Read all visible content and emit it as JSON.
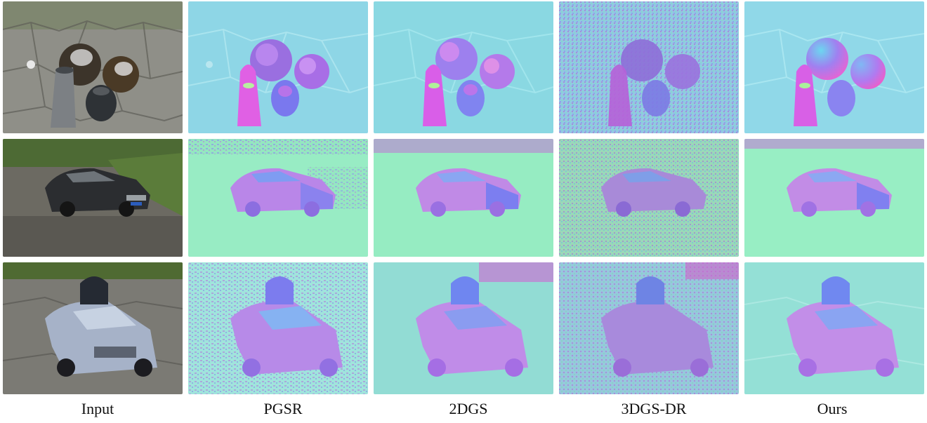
{
  "figure": {
    "columns": [
      {
        "id": "input",
        "label": "Input"
      },
      {
        "id": "pgsr",
        "label": "PGSR"
      },
      {
        "id": "2dgs",
        "label": "2DGS"
      },
      {
        "id": "3dgs-dr",
        "label": "3DGS-DR"
      },
      {
        "id": "ours",
        "label": "Ours"
      }
    ],
    "rows": [
      {
        "id": "garden-spheres",
        "scene": "spheres"
      },
      {
        "id": "sedan",
        "scene": "car"
      },
      {
        "id": "toy-car",
        "scene": "toycar"
      }
    ],
    "colors": {
      "photo_ground": "#8c8c86",
      "photo_grass": "#5b7a3c",
      "normal_ground_row1": "#8ed6e6",
      "normal_ground_row2": "#93eec4",
      "normal_ground_row3": "#90ddd4",
      "normal_object_a": "#a77cf0",
      "normal_object_b": "#e066e8",
      "normal_object_c": "#6f8ff3",
      "noise": "#b46ad8"
    }
  }
}
